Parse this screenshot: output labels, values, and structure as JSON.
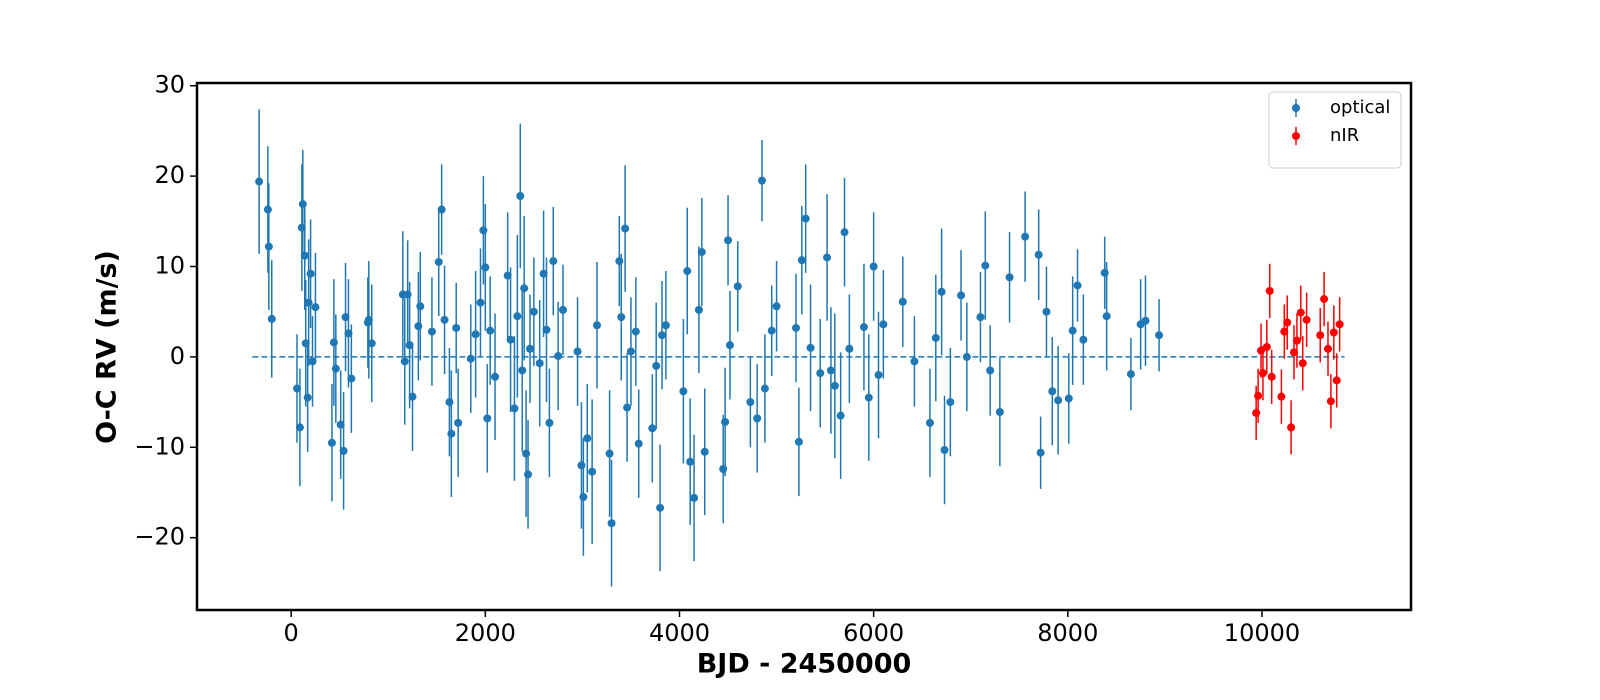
{
  "chart_data": {
    "type": "errorbar-scatter",
    "xlabel": "BJD - 2450000",
    "ylabel": "O-C RV (m/s)",
    "xlim": [
      -970,
      11535
    ],
    "ylim": [
      -28,
      30.3
    ],
    "xticks": [
      0,
      2000,
      4000,
      6000,
      8000,
      10000
    ],
    "yticks": [
      {
        "value": -20,
        "label": "−20"
      },
      {
        "value": -10,
        "label": "−10"
      },
      0,
      10,
      20,
      30
    ],
    "legend": "upper right",
    "hline": {
      "y": 0,
      "xmin": -400,
      "xmax": 10850,
      "color": "#1f77b4",
      "dashed": true
    },
    "series": [
      {
        "name": "optical",
        "color": "#1f77b4",
        "x": [
          -330,
          -240,
          -230,
          -200,
          60,
          90,
          110,
          120,
          140,
          150,
          170,
          180,
          200,
          220,
          250,
          420,
          440,
          460,
          510,
          540,
          560,
          590,
          620,
          790,
          800,
          830,
          1150,
          1170,
          1200,
          1220,
          1250,
          1310,
          1330,
          1450,
          1520,
          1550,
          1580,
          1630,
          1650,
          1700,
          1720,
          1850,
          1900,
          1950,
          1980,
          2000,
          2020,
          2050,
          2100,
          2230,
          2260,
          2300,
          2330,
          2360,
          2380,
          2400,
          2420,
          2440,
          2460,
          2500,
          2560,
          2600,
          2630,
          2660,
          2700,
          2750,
          2800,
          2950,
          2990,
          3010,
          3050,
          3100,
          3150,
          3280,
          3300,
          3380,
          3400,
          3440,
          3460,
          3500,
          3550,
          3580,
          3720,
          3760,
          3800,
          3820,
          3860,
          4040,
          4080,
          4110,
          4150,
          4200,
          4230,
          4260,
          4450,
          4470,
          4500,
          4520,
          4600,
          4730,
          4800,
          4850,
          4880,
          4950,
          5000,
          5200,
          5230,
          5260,
          5300,
          5350,
          5450,
          5520,
          5560,
          5600,
          5660,
          5700,
          5750,
          5900,
          5950,
          6000,
          6050,
          6100,
          6300,
          6420,
          6580,
          6640,
          6700,
          6730,
          6790,
          6900,
          6960,
          7100,
          7150,
          7200,
          7300,
          7400,
          7560,
          7700,
          7720,
          7780,
          7840,
          7900,
          8010,
          8050,
          8100,
          8160,
          8380,
          8400,
          8650,
          8750,
          8800,
          8940
        ],
        "values": [
          19.4,
          16.3,
          12.2,
          4.2,
          -3.5,
          -7.8,
          14.3,
          16.9,
          11.2,
          1.5,
          -4.5,
          6,
          9.2,
          -0.5,
          5.5,
          -9.5,
          1.6,
          -1.3,
          -7.5,
          -10.4,
          4.4,
          2.6,
          -2.4,
          3.8,
          4.1,
          1.5,
          6.9,
          -0.5,
          6.9,
          1.3,
          -4.4,
          3.4,
          5.6,
          2.8,
          10.5,
          16.3,
          4.1,
          -5,
          -8.5,
          3.2,
          -7.3,
          -0.2,
          2.5,
          6,
          14,
          9.9,
          -6.8,
          2.9,
          -2.2,
          9,
          1.9,
          -5.7,
          4.5,
          17.8,
          -1.5,
          7.6,
          -10.7,
          -13,
          0.9,
          5,
          -0.7,
          9.2,
          3,
          -7.3,
          10.6,
          0.1,
          5.2,
          0.6,
          -12,
          -15.5,
          -9,
          -12.7,
          3.5,
          -10.7,
          -18.4,
          10.6,
          4.4,
          14.2,
          -5.6,
          0.6,
          2.8,
          -9.6,
          -7.9,
          -1,
          -16.7,
          2.4,
          3.5,
          -3.8,
          9.5,
          -11.6,
          -15.6,
          5.2,
          11.6,
          -10.5,
          -12.4,
          -7.2,
          12.9,
          1.3,
          7.8,
          -5,
          -6.8,
          19.5,
          -3.5,
          2.9,
          5.6,
          3.2,
          -9.4,
          10.7,
          15.3,
          1,
          -1.8,
          11,
          -1.5,
          -3.2,
          -6.5,
          13.8,
          0.9,
          3.3,
          -4.5,
          10,
          -2,
          3.6,
          6.1,
          -0.5,
          -7.3,
          2.1,
          7.2,
          -10.3,
          -5,
          6.8,
          0,
          4.4,
          10.1,
          -1.5,
          -6.1,
          8.8,
          13.3,
          11.3,
          -10.6,
          5,
          -3.8,
          -4.8,
          -4.6,
          2.9,
          7.9,
          1.9,
          9.3,
          4.5,
          -1.9,
          3.6,
          4,
          2.4
        ],
        "errors": [
          8,
          7,
          7,
          6.5,
          6,
          6.5,
          7,
          6,
          6,
          7,
          6,
          7,
          6,
          5,
          6,
          6.5,
          7,
          6,
          6,
          6.5,
          6,
          6,
          6,
          5,
          6.5,
          6.5,
          7,
          7,
          6,
          7,
          6,
          6,
          6,
          6,
          6,
          5,
          6,
          6,
          7,
          5,
          6,
          6,
          7,
          6,
          6,
          7,
          6,
          6,
          7,
          7,
          8,
          8,
          9,
          8,
          9,
          8,
          7,
          6,
          6,
          6,
          7,
          7,
          8,
          6,
          6,
          6,
          5,
          6,
          7,
          6.5,
          6,
          8,
          7,
          7,
          7,
          5,
          7,
          7,
          6,
          6,
          6,
          6,
          6,
          7,
          7,
          6,
          6,
          8,
          7,
          7,
          7,
          7,
          6,
          7,
          6,
          6,
          5,
          6,
          5,
          5,
          6,
          4.5,
          6,
          5,
          5,
          6,
          6,
          6,
          6,
          7,
          6,
          7,
          7,
          8,
          7,
          6,
          6,
          7,
          7,
          6,
          7,
          6,
          5,
          5,
          6,
          7,
          7,
          6,
          6,
          5,
          6,
          5,
          6,
          5,
          6,
          5,
          5,
          5,
          4,
          5,
          6,
          6,
          5,
          6,
          4,
          5,
          4,
          6,
          4,
          5,
          5,
          4
        ]
      },
      {
        "name": "nIR",
        "color": "#ff0000",
        "x": [
          9940,
          9960,
          9990,
          10010,
          10050,
          10080,
          10100,
          10200,
          10230,
          10260,
          10300,
          10330,
          10360,
          10400,
          10420,
          10460,
          10600,
          10640,
          10680,
          10710,
          10740,
          10770,
          10800
        ],
        "values": [
          -6.2,
          -4.3,
          0.7,
          -1.8,
          1.1,
          7.3,
          -2.2,
          -4.4,
          2.8,
          3.8,
          -7.8,
          0.5,
          1.8,
          4.9,
          -0.7,
          4.1,
          2.4,
          6.4,
          0.9,
          -4.9,
          2.7,
          -2.6,
          3.6
        ],
        "errors": [
          3,
          3,
          3,
          3,
          3,
          3,
          3,
          3,
          3,
          3,
          3,
          3,
          3,
          3,
          3,
          3,
          3,
          3,
          3,
          3,
          3,
          3,
          3
        ]
      }
    ]
  }
}
